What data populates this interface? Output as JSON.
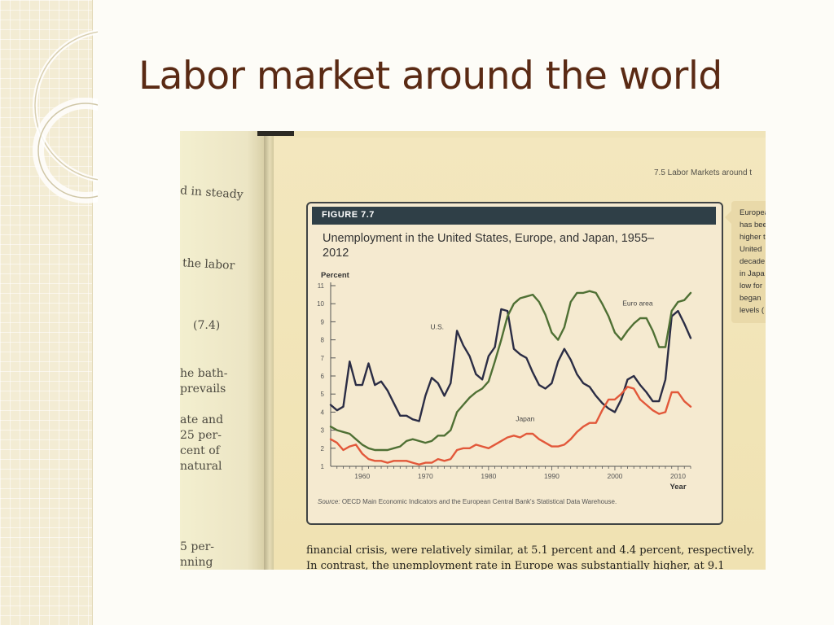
{
  "slide": {
    "title": "Labor market around the world"
  },
  "photo": {
    "left_page_fragments": [
      "d in steady",
      "the labor",
      "(7.4)",
      "he bath-",
      "prevails",
      "ate and",
      "25 per-",
      "cent of",
      "natural",
      "5 per-",
      "nning"
    ],
    "running_head": "7.5   Labor Markets around t",
    "figure_label": "FIGURE 7.7",
    "figure_title": "Unemployment in the United States, Europe, and Japan, 1955–2012",
    "side_note_lines": [
      "Europea",
      "has bee",
      "higher t",
      "United",
      "decade",
      "in Japa",
      "low for",
      "began",
      "levels ("
    ],
    "source_prefix": "Source:",
    "source_text": "OECD Main Economic Indicators and the European Central Bank's Statistical Data Warehouse.",
    "body_lines": [
      "financial crisis, were relatively similar, at 5.1 percent and 4.4 percent, respectively.",
      "In contrast, the unemployment rate in Europe was substantially higher, at 9.1"
    ]
  },
  "colors": {
    "us": "#2b2d45",
    "euro": "#4f7034",
    "japan": "#e2583a",
    "figure_band": "#2f3f47",
    "title_text": "#5a2a14"
  },
  "chart_data": {
    "type": "line",
    "title": "Unemployment in the United States, Europe, and Japan, 1955–2012",
    "xlabel": "Year",
    "ylabel": "Percent",
    "xlim": [
      1955,
      2012
    ],
    "ylim": [
      1,
      11
    ],
    "x_ticks": [
      1960,
      1970,
      1980,
      1990,
      2000,
      2010
    ],
    "y_ticks": [
      1,
      2,
      3,
      4,
      5,
      6,
      7,
      8,
      9,
      10,
      11
    ],
    "grid": false,
    "legend": "inline labels",
    "annotations": [
      "U.S.",
      "Euro area",
      "Japan"
    ],
    "series": [
      {
        "name": "U.S.",
        "x": [
          1955,
          1956,
          1957,
          1958,
          1959,
          1960,
          1961,
          1962,
          1963,
          1964,
          1965,
          1966,
          1967,
          1968,
          1969,
          1970,
          1971,
          1972,
          1973,
          1974,
          1975,
          1976,
          1977,
          1978,
          1979,
          1980,
          1981,
          1982,
          1983,
          1984,
          1985,
          1986,
          1987,
          1988,
          1989,
          1990,
          1991,
          1992,
          1993,
          1994,
          1995,
          1996,
          1997,
          1998,
          1999,
          2000,
          2001,
          2002,
          2003,
          2004,
          2005,
          2006,
          2007,
          2008,
          2009,
          2010,
          2011,
          2012
        ],
        "values": [
          4.4,
          4.1,
          4.3,
          6.8,
          5.5,
          5.5,
          6.7,
          5.5,
          5.7,
          5.2,
          4.5,
          3.8,
          3.8,
          3.6,
          3.5,
          4.9,
          5.9,
          5.6,
          4.9,
          5.6,
          8.5,
          7.7,
          7.1,
          6.1,
          5.8,
          7.1,
          7.6,
          9.7,
          9.6,
          7.5,
          7.2,
          7.0,
          6.2,
          5.5,
          5.3,
          5.6,
          6.8,
          7.5,
          6.9,
          6.1,
          5.6,
          5.4,
          4.9,
          4.5,
          4.2,
          4.0,
          4.7,
          5.8,
          6.0,
          5.5,
          5.1,
          4.6,
          4.6,
          5.8,
          9.3,
          9.6,
          8.9,
          8.1
        ]
      },
      {
        "name": "Euro area",
        "x": [
          1955,
          1956,
          1957,
          1958,
          1959,
          1960,
          1961,
          1962,
          1963,
          1964,
          1965,
          1966,
          1967,
          1968,
          1969,
          1970,
          1971,
          1972,
          1973,
          1974,
          1975,
          1976,
          1977,
          1978,
          1979,
          1980,
          1981,
          1982,
          1983,
          1984,
          1985,
          1986,
          1987,
          1988,
          1989,
          1990,
          1991,
          1992,
          1993,
          1994,
          1995,
          1996,
          1997,
          1998,
          1999,
          2000,
          2001,
          2002,
          2003,
          2004,
          2005,
          2006,
          2007,
          2008,
          2009,
          2010,
          2011,
          2012
        ],
        "values": [
          3.2,
          3.0,
          2.9,
          2.8,
          2.5,
          2.2,
          2.0,
          1.9,
          1.9,
          1.9,
          2.0,
          2.1,
          2.4,
          2.5,
          2.4,
          2.3,
          2.4,
          2.7,
          2.7,
          3.0,
          4.0,
          4.4,
          4.8,
          5.1,
          5.3,
          5.7,
          6.8,
          8.0,
          9.3,
          10.0,
          10.3,
          10.4,
          10.5,
          10.1,
          9.4,
          8.4,
          8.0,
          8.7,
          10.1,
          10.6,
          10.6,
          10.7,
          10.6,
          10.0,
          9.3,
          8.4,
          8.0,
          8.5,
          8.9,
          9.2,
          9.2,
          8.5,
          7.6,
          7.6,
          9.6,
          10.1,
          10.2,
          10.6
        ]
      },
      {
        "name": "Japan",
        "x": [
          1955,
          1956,
          1957,
          1958,
          1959,
          1960,
          1961,
          1962,
          1963,
          1964,
          1965,
          1966,
          1967,
          1968,
          1969,
          1970,
          1971,
          1972,
          1973,
          1974,
          1975,
          1976,
          1977,
          1978,
          1979,
          1980,
          1981,
          1982,
          1983,
          1984,
          1985,
          1986,
          1987,
          1988,
          1989,
          1990,
          1991,
          1992,
          1993,
          1994,
          1995,
          1996,
          1997,
          1998,
          1999,
          2000,
          2001,
          2002,
          2003,
          2004,
          2005,
          2006,
          2007,
          2008,
          2009,
          2010,
          2011,
          2012
        ],
        "values": [
          2.5,
          2.3,
          1.9,
          2.1,
          2.2,
          1.7,
          1.4,
          1.3,
          1.3,
          1.2,
          1.3,
          1.3,
          1.3,
          1.2,
          1.1,
          1.2,
          1.2,
          1.4,
          1.3,
          1.4,
          1.9,
          2.0,
          2.0,
          2.2,
          2.1,
          2.0,
          2.2,
          2.4,
          2.6,
          2.7,
          2.6,
          2.8,
          2.8,
          2.5,
          2.3,
          2.1,
          2.1,
          2.2,
          2.5,
          2.9,
          3.2,
          3.4,
          3.4,
          4.1,
          4.7,
          4.7,
          5.0,
          5.4,
          5.3,
          4.7,
          4.4,
          4.1,
          3.9,
          4.0,
          5.1,
          5.1,
          4.6,
          4.3
        ]
      }
    ]
  }
}
